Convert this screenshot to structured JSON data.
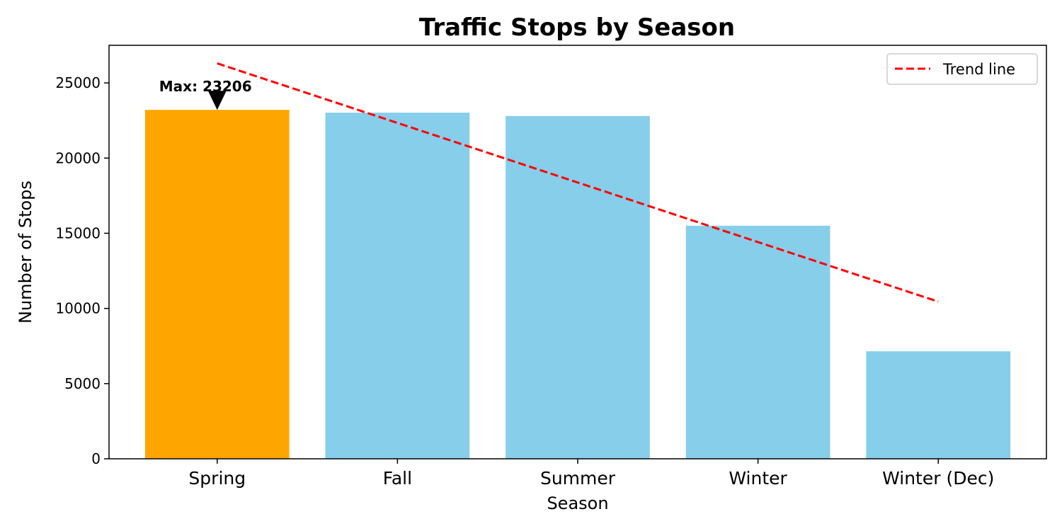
{
  "chart_data": {
    "type": "bar",
    "title": "Traffic Stops by Season",
    "xlabel": "Season",
    "ylabel": "Number of Stops",
    "categories": [
      "Spring",
      "Fall",
      "Summer",
      "Winter",
      "Winter (Dec)"
    ],
    "values": [
      23206,
      23020,
      22800,
      15500,
      7150
    ],
    "ylim": [
      0,
      27500
    ],
    "yticks": [
      0,
      5000,
      10000,
      15000,
      20000,
      25000
    ],
    "grid": false,
    "bar_colors": [
      "#ffa500",
      "#87ceeb",
      "#87ceeb",
      "#87ceeb",
      "#87ceeb"
    ],
    "highlight_color": "#ffa500",
    "bar_color": "#87ceeb",
    "trend_line": {
      "name": "Trend line",
      "color": "#ff0000",
      "style": "dashed",
      "start": {
        "category": "Spring",
        "value": 26300
      },
      "end": {
        "category": "Winter (Dec)",
        "value": 10450
      }
    },
    "annotation": {
      "text": "Max: 23206",
      "category": "Spring",
      "value": 23206
    },
    "legend": {
      "placement": "top-right",
      "entries": [
        "Trend line"
      ]
    }
  }
}
